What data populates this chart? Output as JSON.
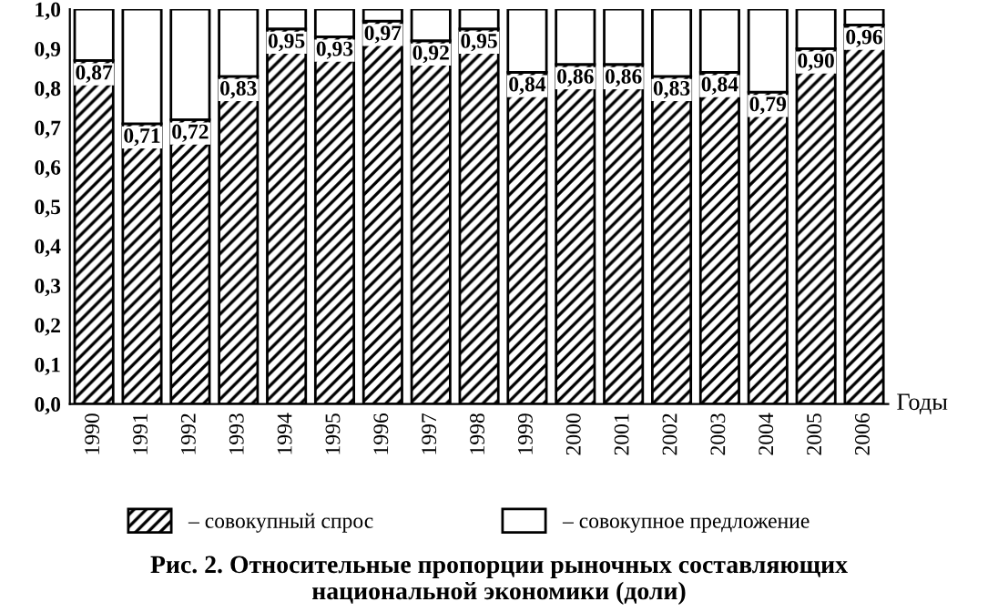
{
  "chart_data": {
    "type": "bar",
    "stacked": true,
    "title": "Рис. 2. Относительные пропорции рыночных составляющих\nнациональной экономики (доли)",
    "xlabel": "Годы",
    "categories": [
      "1990",
      "1991",
      "1992",
      "1993",
      "1994",
      "1995",
      "1996",
      "1997",
      "1998",
      "1999",
      "2000",
      "2001",
      "2002",
      "2003",
      "2004",
      "2005",
      "2006"
    ],
    "series": [
      {
        "name": "– совокупный спрос",
        "color": "#000000",
        "values": [
          0.87,
          0.71,
          0.72,
          0.83,
          0.95,
          0.93,
          0.97,
          0.92,
          0.95,
          0.84,
          0.86,
          0.86,
          0.83,
          0.84,
          0.79,
          0.9,
          0.96
        ],
        "value_labels": [
          "0,87",
          "0,71",
          "0,72",
          "0,83",
          "0,95",
          "0,93",
          "0,97",
          "0,92",
          "0,95",
          "0,84",
          "0,86",
          "0,86",
          "0,83",
          "0,84",
          "0,79",
          "0,90",
          "0,96"
        ]
      },
      {
        "name": "– совокупное предложение",
        "color": "#ffffff",
        "values": [
          0.13,
          0.29,
          0.28,
          0.17,
          0.05,
          0.07,
          0.03,
          0.08,
          0.05,
          0.16,
          0.14,
          0.14,
          0.17,
          0.16,
          0.21,
          0.1,
          0.04
        ]
      }
    ],
    "ylim": [
      0,
      1.0
    ],
    "yticks": [
      {
        "value": 0,
        "label": "0,0"
      },
      {
        "value": 0.1,
        "label": "0,1"
      },
      {
        "value": 0.2,
        "label": "0,2"
      },
      {
        "value": 0.3,
        "label": "0,3"
      },
      {
        "value": 0.4,
        "label": "0,4"
      },
      {
        "value": 0.5,
        "label": "0,5"
      },
      {
        "value": 0.6,
        "label": "0,6"
      },
      {
        "value": 0.7,
        "label": "0,7"
      },
      {
        "value": 0.8,
        "label": "0,8"
      },
      {
        "value": 0.9,
        "label": "0,9"
      },
      {
        "value": 1.0,
        "label": "1,0"
      }
    ],
    "grid": false,
    "legend": "bottom"
  }
}
